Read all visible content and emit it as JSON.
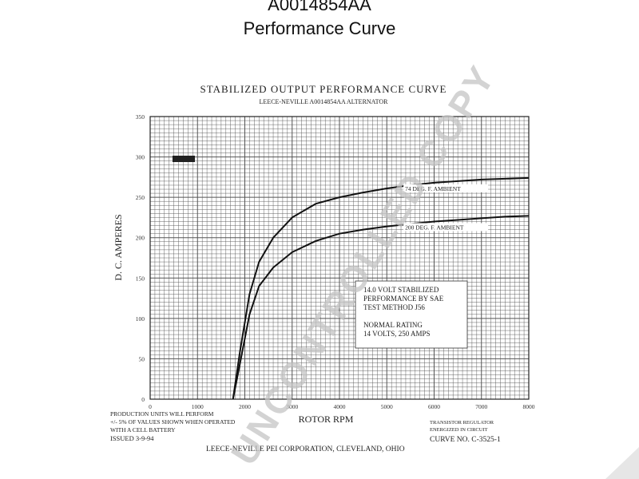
{
  "page": {
    "title": "A0014854AA",
    "subtitle": "Performance Curve"
  },
  "sheet": {
    "heading": "STABILIZED OUTPUT PERFORMANCE CURVE",
    "subheading": "LEECE-NEVILLE A0014854AA ALTERNATOR",
    "footer_left_1": "PRODUCTION UNITS WILL PERFORM",
    "footer_left_2": "+/- 5% OF VALUES SHOWN WHEN OPERATED",
    "footer_left_3": "WITH A CELL BATTERY",
    "issued": "ISSUED 3-9-94",
    "company": "LEECE-NEVILLE PEI CORPORATION, CLEVELAND, OHIO",
    "transistor_1": "TRANSISTOR REGULATOR",
    "transistor_2": "ENERGIZED IN CIRCUIT",
    "curve_no": "CURVE NO. C-3525-1",
    "watermark": "UNCONTROLLED COPY",
    "colors": {
      "ink": "#222222",
      "grid": "#555555",
      "watermark": "#bdbdbd"
    }
  },
  "chart_data": {
    "type": "line",
    "title": "STABILIZED OUTPUT PERFORMANCE CURVE",
    "subtitle": "LEECE-NEVILLE A0014854AA ALTERNATOR",
    "xlabel": "ROTOR RPM",
    "ylabel": "D. C. AMPERES",
    "xlim": [
      0,
      8000
    ],
    "ylim": [
      0,
      350
    ],
    "x_ticks": [
      0,
      1000,
      2000,
      3000,
      4000,
      5000,
      6000,
      7000,
      8000
    ],
    "x_tick_labels": [
      "0",
      "1000",
      "2000",
      "3000",
      "4000",
      "5000",
      "6000",
      "7000",
      "8000"
    ],
    "y_ticks": [
      0,
      50,
      100,
      150,
      200,
      250,
      300,
      350
    ],
    "y_tick_labels": [
      "0",
      "50",
      "100",
      "150",
      "200",
      "250",
      "300",
      "350"
    ],
    "grid": true,
    "series": [
      {
        "name": "74 DEG. F. AMBIENT",
        "x": [
          1750,
          1900,
          2100,
          2300,
          2600,
          3000,
          3500,
          4000,
          4500,
          5000,
          5500,
          6000,
          6500,
          7000,
          7500,
          8000
        ],
        "values": [
          0,
          60,
          130,
          170,
          200,
          225,
          242,
          250,
          256,
          261,
          265,
          268,
          270,
          272,
          273,
          274
        ]
      },
      {
        "name": "200 DEG. F. AMBIENT",
        "x": [
          1750,
          1900,
          2100,
          2300,
          2600,
          3000,
          3500,
          4000,
          4500,
          5000,
          5500,
          6000,
          6500,
          7000,
          7500,
          8000
        ],
        "values": [
          0,
          45,
          105,
          140,
          163,
          182,
          196,
          205,
          210,
          214,
          217,
          220,
          222,
          224,
          226,
          227
        ]
      }
    ],
    "annotation": [
      "14.0 VOLT STABILIZED",
      "PERFORMANCE BY SAE",
      "TEST METHOD J56",
      "",
      "NORMAL RATING",
      "14 VOLTS, 250 AMPS"
    ]
  }
}
